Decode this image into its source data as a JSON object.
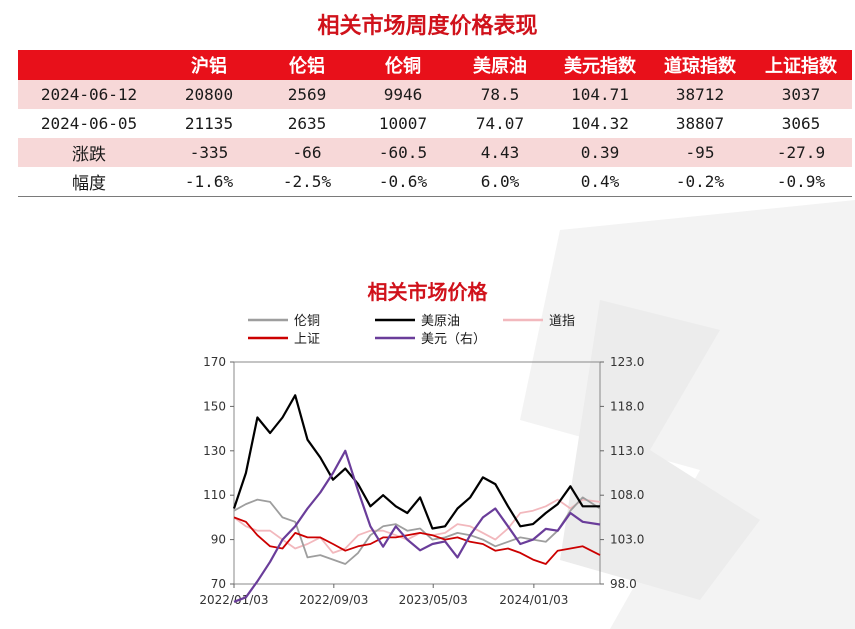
{
  "table": {
    "title": "相关市场周度价格表现",
    "headers": [
      "",
      "沪铝",
      "伦铝",
      "伦铜",
      "美原油",
      "美元指数",
      "道琼指数",
      "上证指数"
    ],
    "rows": [
      {
        "label": "2024-06-12",
        "values": [
          "20800",
          "2569",
          "9946",
          "78.5",
          "104.71",
          "38712",
          "3037"
        ]
      },
      {
        "label": "2024-06-05",
        "values": [
          "21135",
          "2635",
          "10007",
          "74.07",
          "104.32",
          "38807",
          "3065"
        ]
      },
      {
        "label": "涨跌",
        "values": [
          "-335",
          "-66",
          "-60.5",
          "4.43",
          "0.39",
          "-95",
          "-27.9"
        ]
      },
      {
        "label": "幅度",
        "values": [
          "-1.6%",
          "-2.5%",
          "-0.6%",
          "6.0%",
          "0.4%",
          "-0.2%",
          "-0.9%"
        ]
      }
    ]
  },
  "chart_data": {
    "type": "line",
    "title": "相关市场价格",
    "x_ticks": [
      "2022/01/03",
      "2022/09/03",
      "2023/05/03",
      "2024/01/03"
    ],
    "x_range": [
      "2022/01/03",
      "2024/06/12"
    ],
    "y_left": {
      "ticks": [
        "70",
        "90",
        "110",
        "130",
        "150",
        "170"
      ],
      "range": [
        70,
        170
      ]
    },
    "y_right": {
      "ticks": [
        "98.0",
        "103.0",
        "108.0",
        "113.0",
        "118.0",
        "123.0"
      ],
      "range": [
        98,
        123
      ]
    },
    "legend_position": "top",
    "series": [
      {
        "name": "伦铜",
        "color": "#9e9e9e",
        "axis": "left",
        "dates": [
          "2022/01/03",
          "2022/02/01",
          "2022/03/01",
          "2022/04/01",
          "2022/05/01",
          "2022/06/01",
          "2022/07/01",
          "2022/08/01",
          "2022/09/01",
          "2022/10/01",
          "2022/11/01",
          "2022/12/01",
          "2023/01/01",
          "2023/02/01",
          "2023/03/01",
          "2023/04/01",
          "2023/05/01",
          "2023/06/01",
          "2023/07/01",
          "2023/08/01",
          "2023/09/01",
          "2023/10/01",
          "2023/11/01",
          "2023/12/01",
          "2024/01/01",
          "2024/02/01",
          "2024/03/01",
          "2024/04/01",
          "2024/05/01",
          "2024/06/12"
        ],
        "values": [
          103,
          106,
          108,
          107,
          100,
          98,
          82,
          83,
          81,
          79,
          84,
          92,
          96,
          97,
          94,
          95,
          90,
          91,
          93,
          92,
          90,
          87,
          89,
          91,
          90,
          89,
          94,
          103,
          109,
          104
        ]
      },
      {
        "name": "美原油",
        "color": "#000000",
        "axis": "left",
        "dates": [
          "2022/01/03",
          "2022/02/01",
          "2022/03/01",
          "2022/04/01",
          "2022/05/01",
          "2022/06/01",
          "2022/07/01",
          "2022/08/01",
          "2022/09/01",
          "2022/10/01",
          "2022/11/01",
          "2022/12/01",
          "2023/01/01",
          "2023/02/01",
          "2023/03/01",
          "2023/04/01",
          "2023/05/01",
          "2023/06/01",
          "2023/07/01",
          "2023/08/01",
          "2023/09/01",
          "2023/10/01",
          "2023/11/01",
          "2023/12/01",
          "2024/01/01",
          "2024/02/01",
          "2024/03/01",
          "2024/04/01",
          "2024/05/01",
          "2024/06/12"
        ],
        "values": [
          104,
          120,
          145,
          138,
          145,
          155,
          135,
          127,
          117,
          122,
          115,
          105,
          110,
          105,
          102,
          109,
          95,
          96,
          104,
          109,
          118,
          115,
          105,
          96,
          97,
          102,
          106,
          114,
          105,
          105
        ]
      },
      {
        "name": "道指",
        "color": "#f2b8bd",
        "axis": "left",
        "dates": [
          "2022/01/03",
          "2022/02/01",
          "2022/03/01",
          "2022/04/01",
          "2022/05/01",
          "2022/06/01",
          "2022/07/01",
          "2022/08/01",
          "2022/09/01",
          "2022/10/01",
          "2022/11/01",
          "2022/12/01",
          "2023/01/01",
          "2023/02/01",
          "2023/03/01",
          "2023/04/01",
          "2023/05/01",
          "2023/06/01",
          "2023/07/01",
          "2023/08/01",
          "2023/09/01",
          "2023/10/01",
          "2023/11/01",
          "2023/12/01",
          "2024/01/01",
          "2024/02/01",
          "2024/03/01",
          "2024/04/01",
          "2024/05/01",
          "2024/06/12"
        ],
        "values": [
          100,
          96,
          94,
          94,
          90,
          86,
          88,
          91,
          84,
          86,
          92,
          94,
          94,
          92,
          90,
          93,
          92,
          93,
          97,
          96,
          93,
          90,
          95,
          102,
          103,
          105,
          108,
          104,
          108,
          107
        ]
      },
      {
        "name": "上证",
        "color": "#cc0000",
        "axis": "left",
        "dates": [
          "2022/01/03",
          "2022/02/01",
          "2022/03/01",
          "2022/04/01",
          "2022/05/01",
          "2022/06/01",
          "2022/07/01",
          "2022/08/01",
          "2022/09/01",
          "2022/10/01",
          "2022/11/01",
          "2022/12/01",
          "2023/01/01",
          "2023/02/01",
          "2023/03/01",
          "2023/04/01",
          "2023/05/01",
          "2023/06/01",
          "2023/07/01",
          "2023/08/01",
          "2023/09/01",
          "2023/10/01",
          "2023/11/01",
          "2023/12/01",
          "2024/01/01",
          "2024/02/01",
          "2024/03/01",
          "2024/04/01",
          "2024/05/01",
          "2024/06/12"
        ],
        "values": [
          100,
          98,
          92,
          87,
          86,
          93,
          91,
          91,
          88,
          85,
          87,
          88,
          91,
          91,
          92,
          93,
          92,
          90,
          91,
          89,
          88,
          85,
          86,
          84,
          81,
          79,
          85,
          86,
          87,
          83
        ]
      },
      {
        "name": "美元（右）",
        "color": "#6a3d9a",
        "axis": "right",
        "dates": [
          "2022/01/03",
          "2022/02/01",
          "2022/03/01",
          "2022/04/01",
          "2022/05/01",
          "2022/06/01",
          "2022/07/01",
          "2022/08/01",
          "2022/09/01",
          "2022/10/01",
          "2022/11/01",
          "2022/12/01",
          "2023/01/01",
          "2023/02/01",
          "2023/03/01",
          "2023/04/01",
          "2023/05/01",
          "2023/06/01",
          "2023/07/01",
          "2023/08/01",
          "2023/09/01",
          "2023/10/01",
          "2023/11/01",
          "2023/12/01",
          "2024/01/01",
          "2024/02/01",
          "2024/03/01",
          "2024/04/01",
          "2024/05/01",
          "2024/06/12"
        ],
        "values": [
          96.0,
          96.5,
          98.3,
          100.5,
          103.0,
          104.5,
          106.5,
          108.3,
          110.5,
          113.0,
          108.5,
          104.5,
          102.2,
          104.5,
          103.0,
          101.8,
          102.5,
          102.8,
          101.0,
          103.5,
          105.5,
          106.5,
          104.5,
          102.5,
          103.0,
          104.2,
          104.0,
          106.0,
          105.0,
          104.7
        ]
      }
    ]
  }
}
